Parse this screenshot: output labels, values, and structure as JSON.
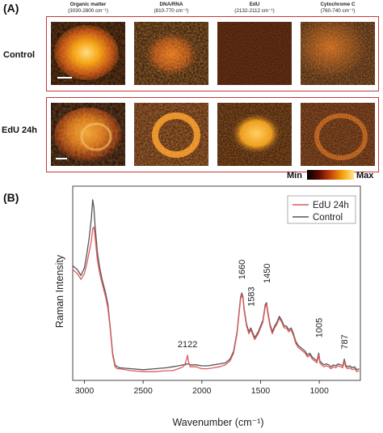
{
  "panel_a": {
    "label": "(A)",
    "columns": [
      {
        "title": "Organic matter",
        "range": "(3030-2800 cm⁻¹)"
      },
      {
        "title": "DNA/RNA",
        "range": "(810-770 cm⁻¹)"
      },
      {
        "title": "EdU",
        "range": "(2132-2112 cm⁻¹)"
      },
      {
        "title": "Cytochrome C",
        "range": "(760-740 cm⁻¹)"
      }
    ],
    "rows": [
      {
        "label": "Control"
      },
      {
        "label": "EdU 24h"
      }
    ],
    "colorbar": {
      "min_label": "Min",
      "max_label": "Max",
      "colors": [
        "#000000",
        "#5a0a00",
        "#c2410c",
        "#f59e0b",
        "#fde68a"
      ]
    }
  },
  "panel_b": {
    "label": "(B)"
  },
  "chart_data": {
    "type": "line",
    "xlabel": "Wavenumber (cm⁻¹)",
    "ylabel": "Raman Intensity",
    "xlim": [
      3100,
      650
    ],
    "x_reversed": true,
    "ylim": [
      0,
      1
    ],
    "xticks": [
      3000,
      2500,
      2000,
      1500,
      1000
    ],
    "y_ticks_shown": false,
    "grid": false,
    "legend_position": "top-right",
    "series": [
      {
        "name": "EdU 24h",
        "color": "#e05a5a",
        "x": [
          3100,
          3060,
          3030,
          3000,
          2980,
          2960,
          2940,
          2930,
          2920,
          2910,
          2890,
          2870,
          2850,
          2820,
          2800,
          2780,
          2760,
          2740,
          2720,
          2700,
          2600,
          2500,
          2400,
          2300,
          2250,
          2200,
          2160,
          2140,
          2130,
          2122,
          2115,
          2100,
          2050,
          2000,
          1950,
          1900,
          1850,
          1800,
          1760,
          1730,
          1700,
          1680,
          1670,
          1660,
          1650,
          1640,
          1620,
          1600,
          1583,
          1570,
          1550,
          1520,
          1500,
          1480,
          1460,
          1450,
          1440,
          1420,
          1400,
          1380,
          1360,
          1340,
          1320,
          1300,
          1280,
          1260,
          1240,
          1220,
          1200,
          1180,
          1160,
          1140,
          1120,
          1100,
          1080,
          1060,
          1040,
          1020,
          1005,
          995,
          980,
          960,
          940,
          920,
          900,
          880,
          860,
          840,
          820,
          800,
          787,
          775,
          760,
          740,
          720,
          700,
          680,
          660
        ],
        "y": [
          0.57,
          0.55,
          0.52,
          0.55,
          0.6,
          0.66,
          0.72,
          0.78,
          0.79,
          0.74,
          0.62,
          0.55,
          0.5,
          0.43,
          0.37,
          0.26,
          0.13,
          0.07,
          0.06,
          0.06,
          0.05,
          0.045,
          0.045,
          0.05,
          0.05,
          0.06,
          0.07,
          0.09,
          0.11,
          0.13,
          0.1,
          0.07,
          0.07,
          0.06,
          0.06,
          0.065,
          0.07,
          0.08,
          0.1,
          0.14,
          0.24,
          0.36,
          0.42,
          0.44,
          0.42,
          0.36,
          0.28,
          0.24,
          0.26,
          0.24,
          0.21,
          0.24,
          0.27,
          0.3,
          0.38,
          0.39,
          0.35,
          0.28,
          0.24,
          0.27,
          0.29,
          0.32,
          0.3,
          0.27,
          0.27,
          0.25,
          0.26,
          0.23,
          0.19,
          0.17,
          0.16,
          0.15,
          0.14,
          0.12,
          0.13,
          0.11,
          0.1,
          0.09,
          0.13,
          0.09,
          0.08,
          0.07,
          0.075,
          0.07,
          0.06,
          0.07,
          0.065,
          0.075,
          0.07,
          0.065,
          0.1,
          0.07,
          0.06,
          0.065,
          0.055,
          0.06,
          0.045,
          0.05
        ]
      },
      {
        "name": "Control",
        "color": "#555555",
        "x": [
          3100,
          3060,
          3030,
          3000,
          2980,
          2960,
          2940,
          2930,
          2920,
          2910,
          2890,
          2870,
          2850,
          2820,
          2800,
          2780,
          2760,
          2740,
          2720,
          2700,
          2600,
          2500,
          2400,
          2300,
          2250,
          2200,
          2160,
          2140,
          2130,
          2122,
          2115,
          2100,
          2050,
          2000,
          1950,
          1900,
          1850,
          1800,
          1760,
          1730,
          1700,
          1680,
          1670,
          1660,
          1650,
          1640,
          1620,
          1600,
          1583,
          1570,
          1550,
          1520,
          1500,
          1480,
          1460,
          1450,
          1440,
          1420,
          1400,
          1380,
          1360,
          1340,
          1320,
          1300,
          1280,
          1260,
          1240,
          1220,
          1200,
          1180,
          1160,
          1140,
          1120,
          1100,
          1080,
          1060,
          1040,
          1020,
          1005,
          995,
          980,
          960,
          940,
          920,
          900,
          880,
          860,
          840,
          820,
          800,
          787,
          775,
          760,
          740,
          720,
          700,
          680,
          660
        ],
        "y": [
          0.59,
          0.57,
          0.54,
          0.58,
          0.65,
          0.73,
          0.84,
          0.93,
          0.89,
          0.8,
          0.66,
          0.58,
          0.52,
          0.45,
          0.39,
          0.27,
          0.14,
          0.08,
          0.07,
          0.065,
          0.06,
          0.055,
          0.06,
          0.065,
          0.07,
          0.075,
          0.08,
          0.08,
          0.085,
          0.085,
          0.085,
          0.08,
          0.08,
          0.075,
          0.075,
          0.08,
          0.085,
          0.09,
          0.11,
          0.15,
          0.25,
          0.37,
          0.43,
          0.45,
          0.43,
          0.37,
          0.29,
          0.25,
          0.27,
          0.25,
          0.22,
          0.25,
          0.28,
          0.31,
          0.39,
          0.4,
          0.36,
          0.29,
          0.25,
          0.28,
          0.3,
          0.33,
          0.31,
          0.28,
          0.28,
          0.26,
          0.27,
          0.24,
          0.2,
          0.18,
          0.17,
          0.16,
          0.15,
          0.13,
          0.14,
          0.12,
          0.11,
          0.1,
          0.14,
          0.1,
          0.09,
          0.08,
          0.085,
          0.08,
          0.07,
          0.08,
          0.075,
          0.085,
          0.08,
          0.075,
          0.11,
          0.08,
          0.07,
          0.075,
          0.065,
          0.07,
          0.055,
          0.06
        ]
      }
    ],
    "annotations": [
      {
        "text": "2122",
        "x": 2122,
        "y": 0.17
      },
      {
        "text": "1660",
        "x": 1660,
        "y": 0.52
      },
      {
        "text": "1583",
        "x": 1583,
        "y": 0.38
      },
      {
        "text": "1450",
        "x": 1450,
        "y": 0.5
      },
      {
        "text": "1005",
        "x": 1005,
        "y": 0.22
      },
      {
        "text": "787",
        "x": 787,
        "y": 0.16
      }
    ]
  }
}
